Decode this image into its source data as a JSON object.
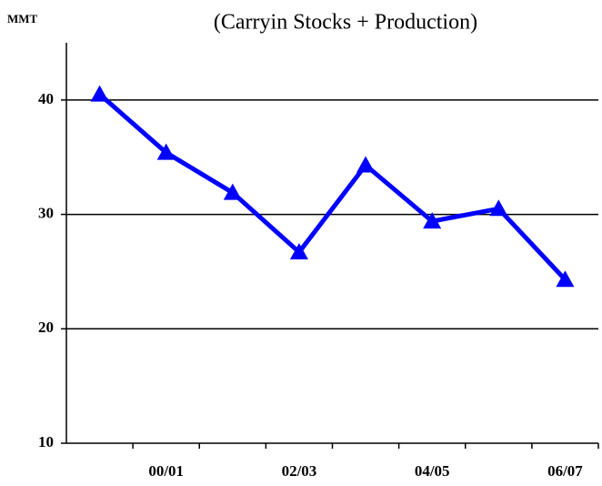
{
  "chart_data": {
    "type": "line",
    "title": "(Carryin Stocks + Production)",
    "y_label": "MMT",
    "categories": [
      null,
      "00/01",
      null,
      "02/03",
      null,
      "04/05",
      null,
      "06/07"
    ],
    "series": [
      {
        "name": "Carryin Stocks + Production",
        "color": "#0000ff",
        "values": [
          40.5,
          35.4,
          31.9,
          26.7,
          34.3,
          29.4,
          30.5,
          24.3
        ]
      }
    ],
    "ylim": [
      10,
      45
    ],
    "yticks": [
      10,
      20,
      30,
      40
    ],
    "grid": true
  }
}
